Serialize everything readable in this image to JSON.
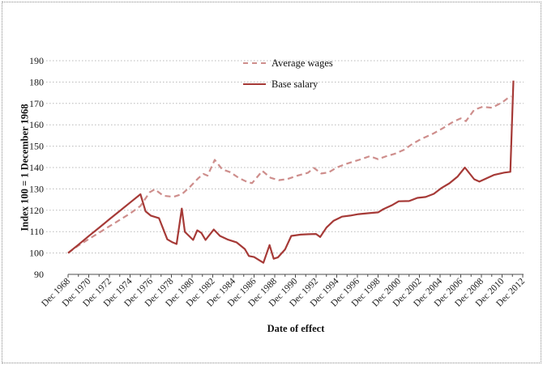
{
  "chart_data": {
    "type": "line",
    "title": "",
    "xlabel": "Date of effect",
    "ylabel": "Index 100 = 1 December 1968",
    "x_unit": "years since Dec 1968",
    "ylim": [
      90,
      190
    ],
    "y_ticks": [
      90,
      100,
      110,
      120,
      130,
      140,
      150,
      160,
      170,
      180,
      190
    ],
    "x_tick_positions": [
      0,
      2,
      4,
      6,
      8,
      10,
      12,
      14,
      16,
      18,
      20,
      22,
      24,
      26,
      28,
      30,
      32,
      34,
      36,
      38,
      40,
      42,
      44
    ],
    "x_tick_labels": [
      "Dec 1968",
      "Dec 1970",
      "Dec 1972",
      "Dec 1974",
      "Dec 1976",
      "Dec 1978",
      "Dec 1980",
      "Dec 1982",
      "Dec 1984",
      "Dec 1986",
      "Dec 1988",
      "Dec 1990",
      "Dec 1992",
      "Dec 1994",
      "Dec 1996",
      "Dec 1998",
      "Dec 2000",
      "Dec 2002",
      "Dec 2004",
      "Dec 2006",
      "Dec 2008",
      "Dec 2010",
      "Dec 2012"
    ],
    "grid": "horizontal-dotted",
    "legend_position": "inside-top-center",
    "series": [
      {
        "name": "Average wages",
        "style": "dashed",
        "color": "#CE8E8C",
        "points": [
          [
            0,
            100
          ],
          [
            1,
            103.5
          ],
          [
            2,
            106.5
          ],
          [
            3,
            109.5
          ],
          [
            4,
            112.5
          ],
          [
            5,
            115.5
          ],
          [
            6,
            118.5
          ],
          [
            7,
            122
          ],
          [
            7.9,
            128.4
          ],
          [
            8.4,
            129.8
          ],
          [
            9.2,
            126.8
          ],
          [
            10.2,
            126.3
          ],
          [
            11,
            127.5
          ],
          [
            11.8,
            131
          ],
          [
            12.6,
            135
          ],
          [
            13.1,
            137
          ],
          [
            13.5,
            136.2
          ],
          [
            14.2,
            143.6
          ],
          [
            14.9,
            139.2
          ],
          [
            15.7,
            137.8
          ],
          [
            16.5,
            135.2
          ],
          [
            17.3,
            133.3
          ],
          [
            17.8,
            132.7
          ],
          [
            18.8,
            138.4
          ],
          [
            19.6,
            135.2
          ],
          [
            20.4,
            134.1
          ],
          [
            21.2,
            134.6
          ],
          [
            22.2,
            136.2
          ],
          [
            23.2,
            137.5
          ],
          [
            23.8,
            139.8
          ],
          [
            24.5,
            137.2
          ],
          [
            25.2,
            137.7
          ],
          [
            26,
            140
          ],
          [
            26.8,
            141.5
          ],
          [
            27.5,
            142.6
          ],
          [
            28.3,
            143.8
          ],
          [
            29.2,
            145.3
          ],
          [
            30,
            143.9
          ],
          [
            30.8,
            145.3
          ],
          [
            31.6,
            146.4
          ],
          [
            32.5,
            148.3
          ],
          [
            33.3,
            151
          ],
          [
            34.1,
            153.2
          ],
          [
            35.3,
            155.8
          ],
          [
            36.3,
            158.5
          ],
          [
            37.3,
            161.5
          ],
          [
            38,
            163
          ],
          [
            38.5,
            161.7
          ],
          [
            39.3,
            167
          ],
          [
            40.1,
            168.4
          ],
          [
            41,
            168
          ],
          [
            42,
            170.4
          ],
          [
            42.5,
            172.3
          ],
          [
            42.9,
            173.3
          ]
        ]
      },
      {
        "name": "Base salary",
        "style": "solid",
        "color": "#A63A37",
        "points": [
          [
            0,
            100
          ],
          [
            1,
            103.9
          ],
          [
            2,
            107.9
          ],
          [
            3,
            111.8
          ],
          [
            4,
            115.8
          ],
          [
            5,
            119.7
          ],
          [
            6,
            123.6
          ],
          [
            7,
            127.5
          ],
          [
            7.5,
            119.5
          ],
          [
            8,
            117.5
          ],
          [
            8.8,
            116.3
          ],
          [
            9.6,
            106.4
          ],
          [
            10.1,
            105
          ],
          [
            10.5,
            104.2
          ],
          [
            11,
            120.8
          ],
          [
            11.3,
            109.9
          ],
          [
            12.1,
            106.1
          ],
          [
            12.5,
            110.6
          ],
          [
            12.9,
            109.4
          ],
          [
            13.3,
            106.1
          ],
          [
            14.1,
            111
          ],
          [
            14.7,
            108
          ],
          [
            15.5,
            106.2
          ],
          [
            16.3,
            105
          ],
          [
            17.1,
            101.9
          ],
          [
            17.5,
            98.6
          ],
          [
            18,
            98.1
          ],
          [
            18.9,
            95.4
          ],
          [
            19.5,
            103.7
          ],
          [
            19.9,
            97.3
          ],
          [
            20.3,
            97.9
          ],
          [
            21,
            101.7
          ],
          [
            21.6,
            108
          ],
          [
            22.5,
            108.6
          ],
          [
            23.3,
            108.8
          ],
          [
            24,
            108.9
          ],
          [
            24.4,
            107.5
          ],
          [
            25,
            111.9
          ],
          [
            25.7,
            115.1
          ],
          [
            26.5,
            117
          ],
          [
            27.3,
            117.5
          ],
          [
            28.1,
            118.2
          ],
          [
            29,
            118.6
          ],
          [
            30,
            119
          ],
          [
            30.5,
            120.5
          ],
          [
            31.4,
            122.5
          ],
          [
            32,
            124.2
          ],
          [
            33,
            124.3
          ],
          [
            33.8,
            125.8
          ],
          [
            34.6,
            126.2
          ],
          [
            35.4,
            127.7
          ],
          [
            36.1,
            130.3
          ],
          [
            36.9,
            132.6
          ],
          [
            37.7,
            135.8
          ],
          [
            38.4,
            140
          ],
          [
            39.3,
            134.5
          ],
          [
            39.8,
            133.4
          ],
          [
            41.2,
            136.5
          ],
          [
            42.2,
            137.6
          ],
          [
            42.8,
            138
          ],
          [
            43.1,
            180.7
          ]
        ]
      }
    ]
  }
}
